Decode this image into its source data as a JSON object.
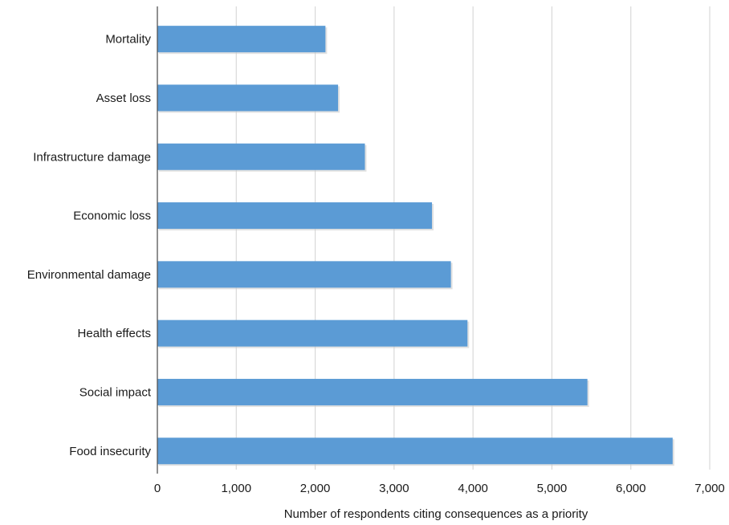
{
  "chart_data": {
    "type": "bar",
    "orientation": "horizontal",
    "categories": [
      "Mortality",
      "Asset loss",
      "Infrastructure damage",
      "Economic loss",
      "Environmental damage",
      "Health effects",
      "Social impact",
      "Food insecurity"
    ],
    "values": [
      2130,
      2290,
      2630,
      3480,
      3720,
      3930,
      5450,
      6530
    ],
    "xlabel": "Number of respondents citing consequences as a priority",
    "ylabel": "",
    "xlim": [
      0,
      7000
    ],
    "xticks": [
      0,
      1000,
      2000,
      3000,
      4000,
      5000,
      6000,
      7000
    ],
    "xtick_labels": [
      "0",
      "1,000",
      "2,000",
      "3,000",
      "4,000",
      "5,000",
      "6,000",
      "7,000"
    ],
    "grid": "vertical",
    "bar_color": "#5b9bd5",
    "grid_color": "#d9d9d9",
    "axis_color": "#555555"
  }
}
